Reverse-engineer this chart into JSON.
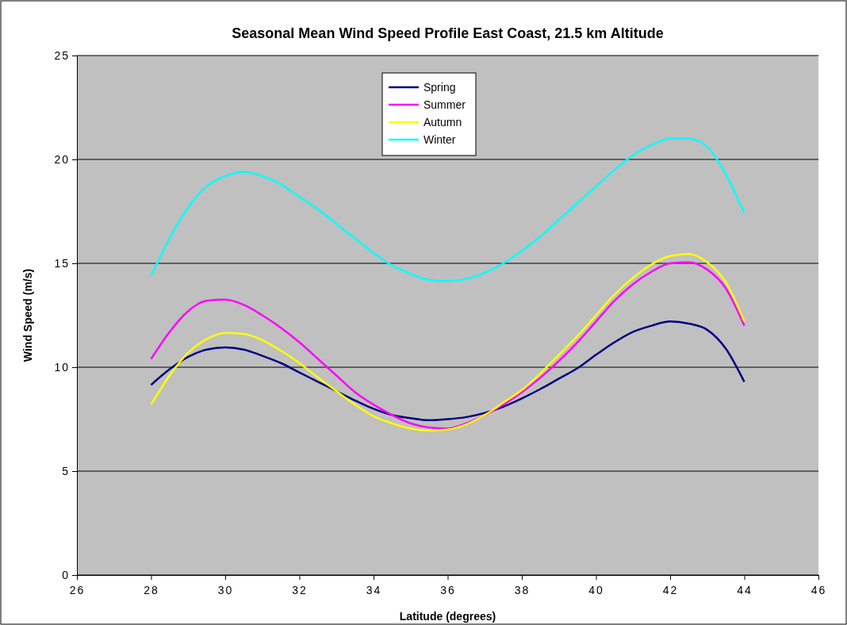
{
  "chart_data": {
    "type": "line",
    "title": "Seasonal Mean Wind Speed Profile East Coast, 21.5 km Altitude",
    "xlabel": "Latitude (degrees)",
    "ylabel": "Wind Speed (m/s)",
    "x": [
      28,
      28.5,
      29,
      29.5,
      30,
      30.5,
      31,
      31.5,
      32,
      32.5,
      33,
      33.5,
      34,
      34.5,
      35,
      35.5,
      36,
      36.5,
      37,
      37.5,
      38,
      38.5,
      39,
      39.5,
      40,
      40.5,
      41,
      41.5,
      42,
      42.5,
      43,
      43.5,
      44
    ],
    "series": [
      {
        "name": "Spring",
        "color": "#000080",
        "values": [
          9.15,
          9.9,
          10.5,
          10.85,
          10.95,
          10.85,
          10.55,
          10.2,
          9.75,
          9.3,
          8.85,
          8.4,
          8.0,
          7.7,
          7.55,
          7.45,
          7.5,
          7.6,
          7.8,
          8.1,
          8.5,
          8.95,
          9.45,
          9.95,
          10.6,
          11.2,
          11.7,
          12.0,
          12.2,
          12.1,
          11.8,
          10.9,
          9.3
        ]
      },
      {
        "name": "Summer",
        "color": "#ff00ff",
        "values": [
          10.4,
          11.7,
          12.7,
          13.2,
          13.25,
          13.0,
          12.5,
          11.9,
          11.2,
          10.4,
          9.6,
          8.8,
          8.2,
          7.7,
          7.3,
          7.1,
          7.05,
          7.3,
          7.7,
          8.2,
          8.8,
          9.5,
          10.3,
          11.2,
          12.2,
          13.2,
          14.0,
          14.6,
          15.0,
          15.05,
          14.7,
          13.8,
          12.0
        ]
      },
      {
        "name": "Autumn",
        "color": "#ffff00",
        "values": [
          8.2,
          9.6,
          10.7,
          11.35,
          11.65,
          11.6,
          11.3,
          10.8,
          10.2,
          9.5,
          8.85,
          8.2,
          7.65,
          7.3,
          7.05,
          6.95,
          7.0,
          7.25,
          7.7,
          8.3,
          8.9,
          9.7,
          10.6,
          11.5,
          12.5,
          13.5,
          14.3,
          14.95,
          15.35,
          15.45,
          15.05,
          14.1,
          12.2
        ]
      },
      {
        "name": "Winter",
        "color": "#00ffff",
        "values": [
          14.4,
          16.2,
          17.7,
          18.7,
          19.2,
          19.4,
          19.2,
          18.8,
          18.2,
          17.6,
          16.9,
          16.2,
          15.5,
          14.9,
          14.5,
          14.2,
          14.15,
          14.25,
          14.55,
          15.0,
          15.6,
          16.3,
          17.1,
          17.9,
          18.7,
          19.5,
          20.2,
          20.7,
          21.0,
          21.0,
          20.6,
          19.3,
          17.4
        ]
      }
    ],
    "xlim": [
      26,
      46
    ],
    "xticks": [
      26,
      28,
      30,
      32,
      34,
      36,
      38,
      40,
      42,
      44,
      46
    ],
    "ylim": [
      0,
      25
    ],
    "yticks": [
      0,
      5,
      10,
      15,
      20,
      25
    ],
    "grid": "y",
    "legend": "top",
    "marker": "none",
    "line_style": "solid"
  }
}
